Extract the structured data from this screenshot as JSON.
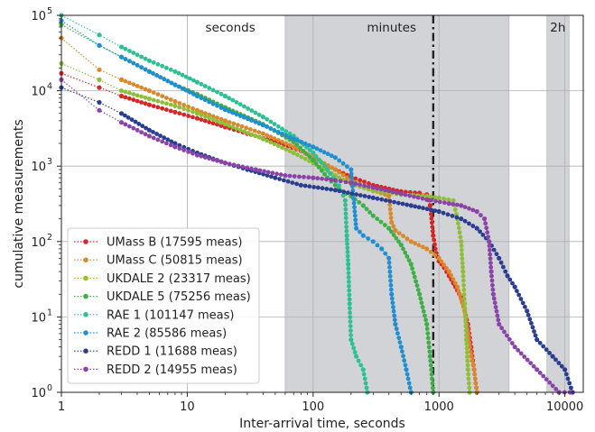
{
  "chart_data": {
    "type": "line",
    "xlabel": "Inter-arrival time, seconds",
    "ylabel": "cumulative measurements",
    "xscale": "log",
    "yscale": "log",
    "xlim": [
      1,
      14000
    ],
    "ylim": [
      1,
      100000
    ],
    "grid": true,
    "legend_position": "lower-left",
    "x_ticks": [
      {
        "value": 1,
        "label": "1"
      },
      {
        "value": 10,
        "label": "10"
      },
      {
        "value": 100,
        "label": "100"
      },
      {
        "value": 1000,
        "label": "1000"
      },
      {
        "value": 10000,
        "label": "10000"
      }
    ],
    "y_ticks": [
      {
        "value": 1,
        "label": "10",
        "exp": "0"
      },
      {
        "value": 10,
        "label": "10",
        "exp": "1"
      },
      {
        "value": 100,
        "label": "10",
        "exp": "2"
      },
      {
        "value": 1000,
        "label": "10",
        "exp": "3"
      },
      {
        "value": 10000,
        "label": "10",
        "exp": "4"
      },
      {
        "value": 100000,
        "label": "10",
        "exp": "5"
      }
    ],
    "shaded_regions": [
      {
        "x0": 60,
        "x1": 3600,
        "label": "minutes"
      },
      {
        "x0": 7200,
        "x1": 10800,
        "label": "2h"
      }
    ],
    "region_labels": [
      {
        "text": "seconds",
        "x": 22
      },
      {
        "text": "minutes",
        "x": 420
      },
      {
        "text": "2h",
        "x": 8800
      }
    ],
    "vline": {
      "x": 900,
      "style": "dash-dot",
      "color": "#222222"
    },
    "series": [
      {
        "name": "UMass B (17595 meas)",
        "color": "#d62728",
        "points": [
          [
            1,
            17000
          ],
          [
            2,
            11000
          ],
          [
            3,
            8500
          ],
          [
            5,
            6500
          ],
          [
            8,
            5200
          ],
          [
            12,
            4300
          ],
          [
            20,
            3300
          ],
          [
            30,
            2700
          ],
          [
            50,
            2100
          ],
          [
            80,
            1600
          ],
          [
            100,
            1300
          ],
          [
            150,
            900
          ],
          [
            200,
            720
          ],
          [
            300,
            560
          ],
          [
            500,
            460
          ],
          [
            700,
            440
          ],
          [
            800,
            420
          ],
          [
            850,
            300
          ],
          [
            900,
            120
          ],
          [
            950,
            70
          ],
          [
            1000,
            55
          ],
          [
            1100,
            45
          ],
          [
            1200,
            35
          ],
          [
            1300,
            28
          ],
          [
            1500,
            18
          ],
          [
            1700,
            8
          ],
          [
            1800,
            4
          ],
          [
            1900,
            2
          ],
          [
            2000,
            1
          ]
        ]
      },
      {
        "name": "UMass C (50815 meas)",
        "color": "#d9892b",
        "points": [
          [
            1,
            50000
          ],
          [
            2,
            19000
          ],
          [
            3,
            14000
          ],
          [
            5,
            10000
          ],
          [
            8,
            7200
          ],
          [
            12,
            5500
          ],
          [
            20,
            4000
          ],
          [
            40,
            2700
          ],
          [
            70,
            1800
          ],
          [
            100,
            1300
          ],
          [
            150,
            900
          ],
          [
            200,
            650
          ],
          [
            300,
            480
          ],
          [
            400,
            400
          ],
          [
            420,
            180
          ],
          [
            450,
            140
          ],
          [
            600,
            100
          ],
          [
            800,
            80
          ],
          [
            1000,
            60
          ],
          [
            1200,
            40
          ],
          [
            1400,
            25
          ],
          [
            1600,
            12
          ],
          [
            1700,
            6
          ],
          [
            1800,
            3
          ],
          [
            1900,
            2
          ],
          [
            2000,
            1
          ]
        ]
      },
      {
        "name": "UKDALE 2 (23317 meas)",
        "color": "#8fbf3a",
        "points": [
          [
            1,
            23000
          ],
          [
            2,
            14000
          ],
          [
            3,
            10000
          ],
          [
            5,
            7800
          ],
          [
            8,
            6300
          ],
          [
            12,
            5000
          ],
          [
            20,
            3600
          ],
          [
            40,
            2300
          ],
          [
            70,
            1500
          ],
          [
            100,
            1100
          ],
          [
            150,
            750
          ],
          [
            200,
            580
          ],
          [
            300,
            470
          ],
          [
            500,
            420
          ],
          [
            800,
            400
          ],
          [
            1000,
            380
          ],
          [
            1300,
            350
          ],
          [
            1400,
            200
          ],
          [
            1500,
            100
          ],
          [
            1550,
            40
          ],
          [
            1600,
            15
          ],
          [
            1650,
            5
          ],
          [
            1700,
            2
          ],
          [
            1750,
            1
          ]
        ]
      },
      {
        "name": "UKDALE 5 (75256 meas)",
        "color": "#3fae49",
        "points": [
          [
            1,
            75000
          ],
          [
            2,
            40000
          ],
          [
            3,
            28000
          ],
          [
            5,
            18000
          ],
          [
            8,
            12000
          ],
          [
            12,
            9000
          ],
          [
            20,
            6000
          ],
          [
            40,
            3600
          ],
          [
            70,
            2100
          ],
          [
            100,
            1200
          ],
          [
            130,
            700
          ],
          [
            160,
            500
          ],
          [
            180,
            430
          ],
          [
            200,
            400
          ],
          [
            250,
            300
          ],
          [
            300,
            220
          ],
          [
            400,
            150
          ],
          [
            500,
            90
          ],
          [
            600,
            50
          ],
          [
            700,
            20
          ],
          [
            800,
            8
          ],
          [
            850,
            3
          ],
          [
            900,
            1
          ]
        ]
      },
      {
        "name": "RAE 1 (101147 meas)",
        "color": "#2ebf95",
        "points": [
          [
            1,
            100000
          ],
          [
            2,
            55000
          ],
          [
            3,
            38000
          ],
          [
            5,
            25000
          ],
          [
            8,
            18000
          ],
          [
            12,
            13000
          ],
          [
            20,
            8500
          ],
          [
            40,
            4500
          ],
          [
            70,
            2500
          ],
          [
            100,
            1500
          ],
          [
            130,
            900
          ],
          [
            160,
            550
          ],
          [
            180,
            350
          ],
          [
            185,
            120
          ],
          [
            190,
            50
          ],
          [
            195,
            15
          ],
          [
            200,
            5
          ],
          [
            220,
            3
          ],
          [
            250,
            2
          ],
          [
            270,
            1
          ]
        ]
      },
      {
        "name": "RAE 2 (85586 meas)",
        "color": "#1f8fd0",
        "points": [
          [
            1,
            85000
          ],
          [
            2,
            40000
          ],
          [
            3,
            28000
          ],
          [
            5,
            18000
          ],
          [
            8,
            12000
          ],
          [
            12,
            8500
          ],
          [
            20,
            5600
          ],
          [
            40,
            3500
          ],
          [
            70,
            2300
          ],
          [
            100,
            1800
          ],
          [
            150,
            1300
          ],
          [
            200,
            900
          ],
          [
            220,
            150
          ],
          [
            250,
            120
          ],
          [
            300,
            100
          ],
          [
            350,
            80
          ],
          [
            400,
            60
          ],
          [
            420,
            20
          ],
          [
            450,
            8
          ],
          [
            500,
            4
          ],
          [
            550,
            2
          ],
          [
            600,
            1
          ]
        ]
      },
      {
        "name": "REDD 1 (11688 meas)",
        "color": "#2b3d8f",
        "points": [
          [
            1,
            11000
          ],
          [
            2,
            7000
          ],
          [
            3,
            5000
          ],
          [
            5,
            3000
          ],
          [
            8,
            2000
          ],
          [
            12,
            1500
          ],
          [
            20,
            1100
          ],
          [
            30,
            900
          ],
          [
            50,
            700
          ],
          [
            80,
            560
          ],
          [
            150,
            480
          ],
          [
            300,
            380
          ],
          [
            600,
            300
          ],
          [
            1000,
            250
          ],
          [
            1500,
            200
          ],
          [
            2000,
            150
          ],
          [
            2500,
            100
          ],
          [
            3000,
            60
          ],
          [
            3500,
            35
          ],
          [
            4000,
            25
          ],
          [
            5000,
            12
          ],
          [
            6000,
            5
          ],
          [
            8000,
            3
          ],
          [
            10000,
            2
          ],
          [
            11500,
            1
          ]
        ]
      },
      {
        "name": "REDD 2 (14955 meas)",
        "color": "#8a44a8",
        "points": [
          [
            1,
            14000
          ],
          [
            2,
            5500
          ],
          [
            3,
            3800
          ],
          [
            5,
            2500
          ],
          [
            8,
            1800
          ],
          [
            12,
            1400
          ],
          [
            20,
            1100
          ],
          [
            35,
            900
          ],
          [
            60,
            750
          ],
          [
            100,
            700
          ],
          [
            150,
            650
          ],
          [
            200,
            600
          ],
          [
            300,
            520
          ],
          [
            500,
            430
          ],
          [
            800,
            360
          ],
          [
            1200,
            320
          ],
          [
            1500,
            300
          ],
          [
            2000,
            250
          ],
          [
            2300,
            200
          ],
          [
            2500,
            100
          ],
          [
            2600,
            40
          ],
          [
            2700,
            20
          ],
          [
            3000,
            8
          ],
          [
            4000,
            4
          ],
          [
            6000,
            2
          ],
          [
            9000,
            1
          ],
          [
            11000,
            1
          ]
        ]
      }
    ]
  }
}
